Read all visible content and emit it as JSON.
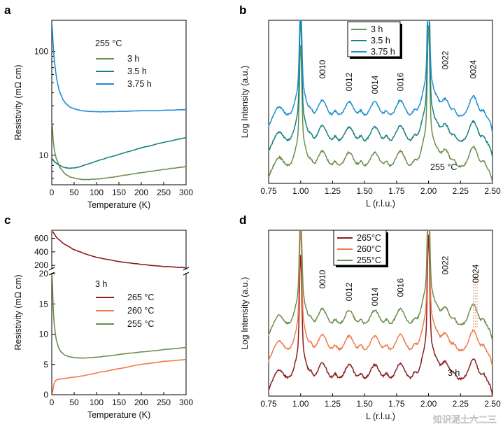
{
  "colors": {
    "green": "#6b8f4e",
    "teal": "#16827c",
    "blue": "#1f8fd0",
    "darkred": "#8c1c1c",
    "orange": "#f07a4a",
    "ref_line": "#e0a070"
  },
  "watermark": "知识泥土六二三",
  "chart_data": [
    {
      "panel": "a",
      "type": "line",
      "xlabel": "Temperature (K)",
      "ylabel": "Resistivity (mΩ cm)",
      "xlim": [
        0,
        300
      ],
      "ylim": [
        5,
        200
      ],
      "yscale": "log",
      "x_ticks": [
        "0",
        "50",
        "100",
        "150",
        "200",
        "250",
        "300"
      ],
      "y_ticks": [
        "10",
        "100"
      ],
      "legend_title": "255 °C",
      "legend_pos": "top-center",
      "series": [
        {
          "name": "3 h",
          "color": "#6b8f4e",
          "x": [
            1,
            3,
            6,
            10,
            15,
            20,
            30,
            40,
            55,
            70,
            85,
            100,
            130,
            160,
            200,
            250,
            300
          ],
          "y": [
            20,
            14,
            11,
            9.3,
            8.2,
            7.4,
            6.6,
            6.2,
            5.95,
            5.85,
            5.85,
            5.9,
            6.1,
            6.4,
            6.8,
            7.3,
            7.8
          ]
        },
        {
          "name": "3.5 h",
          "color": "#16827c",
          "x": [
            1,
            3,
            6,
            10,
            15,
            20,
            30,
            40,
            50,
            60,
            80,
            100,
            150,
            200,
            250,
            300
          ],
          "y": [
            9.3,
            9.0,
            8.7,
            8.4,
            8.1,
            7.9,
            7.6,
            7.5,
            7.55,
            7.7,
            8.2,
            8.8,
            10.2,
            11.8,
            13.3,
            14.8
          ]
        },
        {
          "name": "3.75 h",
          "color": "#1f8fd0",
          "x": [
            1,
            2,
            4,
            6,
            8,
            10,
            13,
            16,
            20,
            25,
            30,
            40,
            50,
            60,
            70,
            80,
            100,
            120,
            150,
            200,
            250,
            300
          ],
          "y": [
            180,
            140,
            100,
            80,
            68,
            58,
            49,
            43,
            38.5,
            34.5,
            32,
            29.3,
            28,
            27.2,
            26.8,
            26.5,
            26.3,
            26.3,
            26.5,
            26.8,
            27.1,
            27.5
          ]
        }
      ]
    },
    {
      "panel": "b",
      "type": "line",
      "xlabel": "L (r.l.u.)",
      "ylabel": "Log Intensity (a.u.)",
      "xlim": [
        0.75,
        2.5
      ],
      "x_ticks": [
        "0.75",
        "1.00",
        "1.25",
        "1.50",
        "1.75",
        "2.00",
        "2.25",
        "2.50"
      ],
      "annotation": "255 °C",
      "peak_labels": [
        "0010",
        "0012",
        "0014",
        "0016",
        "0022",
        "0024"
      ],
      "legend_pos": "top-center",
      "series": [
        {
          "name": "3 h",
          "color": "#6b8f4e"
        },
        {
          "name": "3.5 h",
          "color": "#16827c"
        },
        {
          "name": "3.75 h",
          "color": "#1f8fd0"
        }
      ]
    },
    {
      "panel": "c",
      "type": "line",
      "xlabel": "Temperature (K)",
      "ylabel": "Resistivity (mΩ cm)",
      "xlim": [
        0,
        300
      ],
      "ylim_upper": [
        150,
        720
      ],
      "ylim_lower": [
        0,
        20
      ],
      "axis_break": true,
      "x_ticks": [
        "0",
        "50",
        "100",
        "150",
        "200",
        "250",
        "300"
      ],
      "y_ticks_upper": [
        "200",
        "400",
        "600"
      ],
      "y_ticks_lower": [
        "0",
        "5",
        "10",
        "15",
        "20"
      ],
      "legend_title": "3 h",
      "legend_pos": "center",
      "series": [
        {
          "name": "265 °C",
          "color": "#8c1c1c",
          "x": [
            2,
            10,
            25,
            50,
            75,
            100,
            150,
            200,
            250,
            300
          ],
          "y": [
            700,
            620,
            530,
            430,
            370,
            320,
            255,
            215,
            185,
            165
          ]
        },
        {
          "name": "260 °C",
          "color": "#f07a4a",
          "x": [
            1,
            3,
            5,
            8,
            12,
            20,
            30,
            50,
            75,
            100,
            150,
            200,
            250,
            300
          ],
          "y": [
            0.2,
            1.0,
            1.8,
            2.3,
            2.5,
            2.6,
            2.7,
            2.9,
            3.2,
            3.6,
            4.3,
            5.0,
            5.5,
            5.8
          ]
        },
        {
          "name": "255 °C",
          "color": "#6b8f4e",
          "x": [
            1,
            2,
            3,
            4,
            6,
            8,
            10,
            15,
            20,
            30,
            40,
            55,
            70,
            85,
            100,
            130,
            160,
            200,
            250,
            300
          ],
          "y": [
            19.5,
            17,
            15,
            13.2,
            11.3,
            10.1,
            9.1,
            7.8,
            7.1,
            6.5,
            6.25,
            6.1,
            6.05,
            6.1,
            6.2,
            6.45,
            6.75,
            7.05,
            7.45,
            7.8
          ]
        }
      ]
    },
    {
      "panel": "d",
      "type": "line",
      "xlabel": "L (r.l.u.)",
      "ylabel": "Log Intensity (a.u.)",
      "xlim": [
        0.75,
        2.5
      ],
      "x_ticks": [
        "0.75",
        "1.00",
        "1.25",
        "1.50",
        "1.75",
        "2.00",
        "2.25",
        "2.50"
      ],
      "annotation": "3 h",
      "peak_labels": [
        "0010",
        "0012",
        "0014",
        "0016",
        "0022",
        "0024"
      ],
      "legend_pos": "top-left",
      "series": [
        {
          "name": "265°C",
          "color": "#8c1c1c"
        },
        {
          "name": "260°C",
          "color": "#f07a4a"
        },
        {
          "name": "255°C",
          "color": "#6b8f4e"
        }
      ]
    }
  ]
}
